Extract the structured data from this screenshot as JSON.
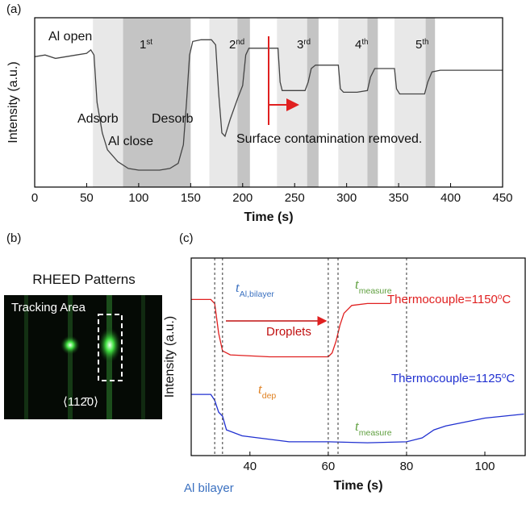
{
  "chart_data": [
    {
      "type": "line",
      "panel_label": "(a)",
      "xlabel": "Time (s)",
      "ylabel": "Intensity (a.u.)",
      "xlim": [
        0,
        450
      ],
      "ylim": [
        0,
        100
      ],
      "xticks": [
        0,
        50,
        100,
        150,
        200,
        250,
        300,
        350,
        400,
        450
      ],
      "color": "#444444",
      "x": [
        0,
        10,
        20,
        30,
        40,
        50,
        54,
        57,
        60,
        65,
        70,
        80,
        90,
        100,
        110,
        120,
        130,
        138,
        143,
        146,
        149,
        152,
        160,
        170,
        174,
        177,
        180,
        183,
        188,
        195,
        200,
        203,
        206,
        215,
        225,
        234,
        236,
        238,
        250,
        260,
        263,
        266,
        270,
        280,
        292,
        294,
        297,
        310,
        320,
        323,
        327,
        335,
        346,
        348,
        351,
        365,
        375,
        378,
        382,
        390,
        420,
        450
      ],
      "values": [
        77,
        78,
        76,
        77,
        78,
        79,
        81,
        78,
        50,
        32,
        22,
        15,
        11,
        10,
        10,
        10,
        11,
        14,
        25,
        50,
        78,
        86,
        87,
        87,
        84,
        55,
        32,
        30,
        40,
        52,
        60,
        78,
        82,
        82,
        82,
        82,
        62,
        57,
        57,
        57,
        62,
        70,
        72,
        72,
        72,
        58,
        56,
        56,
        57,
        65,
        70,
        70,
        70,
        58,
        55,
        55,
        55,
        62,
        68,
        69,
        69,
        69
      ],
      "shaded": [
        {
          "x": [
            56,
            85
          ],
          "color": "#e8e8e8"
        },
        {
          "x": [
            85,
            150
          ],
          "color": "#c4c4c4"
        },
        {
          "x": [
            168,
            195
          ],
          "color": "#e8e8e8"
        },
        {
          "x": [
            195,
            207
          ],
          "color": "#c4c4c4"
        },
        {
          "x": [
            233,
            262
          ],
          "color": "#e8e8e8"
        },
        {
          "x": [
            262,
            273
          ],
          "color": "#c4c4c4"
        },
        {
          "x": [
            292,
            320
          ],
          "color": "#e8e8e8"
        },
        {
          "x": [
            320,
            330
          ],
          "color": "#c4c4c4"
        },
        {
          "x": [
            346,
            376
          ],
          "color": "#e8e8e8"
        },
        {
          "x": [
            376,
            385
          ],
          "color": "#c4c4c4"
        }
      ],
      "marker_x": 225,
      "marker_color": "#e02020",
      "stages": [
        {
          "text": "1",
          "sup": "st"
        },
        {
          "text": "2",
          "sup": "nd"
        },
        {
          "text": "3",
          "sup": "rd"
        },
        {
          "text": "4",
          "sup": "th"
        },
        {
          "text": "5",
          "sup": "th"
        }
      ],
      "annotations": [
        "Al open",
        "Adsorb",
        "Al close",
        "Desorb",
        "Surface contamination removed."
      ]
    },
    {
      "type": "line",
      "panel_label": "(c)",
      "xlabel": "Time (s)",
      "ylabel": "Intensity (a.u.)",
      "xlim": [
        25,
        110.3
      ],
      "ylim": [
        0,
        100
      ],
      "xticks": [
        40,
        60,
        80,
        100
      ],
      "series": [
        {
          "color": "#e02020",
          "x": [
            25,
            30,
            31,
            32,
            33,
            35,
            45,
            55,
            60,
            61,
            62,
            63,
            64,
            66,
            70,
            76
          ],
          "values": [
            79,
            79,
            77,
            62,
            53,
            51,
            50,
            50,
            50,
            52,
            58,
            66,
            72,
            76,
            77,
            77
          ]
        },
        {
          "color": "#2030d0",
          "x": [
            25,
            30,
            31,
            32,
            33,
            34,
            38,
            50,
            60,
            70,
            80,
            84,
            87,
            90,
            95,
            100,
            105,
            110
          ],
          "values": [
            31,
            31,
            28,
            22,
            20,
            13,
            10,
            7,
            7,
            6.5,
            7,
            9,
            13,
            15,
            17,
            19,
            20,
            21
          ]
        }
      ],
      "vlines": [
        31,
        33,
        60,
        62.5,
        80
      ],
      "annotations": [
        {
          "text": "Thermocouple=1150",
          "sup": "o",
          "tail": "C",
          "color": "#e02020"
        },
        {
          "text": "Thermocouple=1125",
          "sup": "o",
          "tail": "C",
          "color": "#2030d0"
        },
        {
          "text": "t",
          "sub": "Al,bilayer",
          "color": "#3a70c0"
        },
        {
          "text": "t",
          "sub": "measure",
          "color": "#60a040"
        },
        {
          "text": "t",
          "sub": "dep",
          "color": "#e08020"
        },
        {
          "text": "t",
          "sub": "measure",
          "color": "#60a040"
        },
        {
          "text": "Droplets",
          "color": "#c01010"
        },
        {
          "text": "Al bilayer",
          "color": "#3a70c0"
        }
      ]
    }
  ],
  "panel_b": {
    "panel_label": "(b)",
    "title": "RHEED Patterns",
    "region_label": "Tracking Area",
    "direction": "⟨112̄0⟩"
  }
}
